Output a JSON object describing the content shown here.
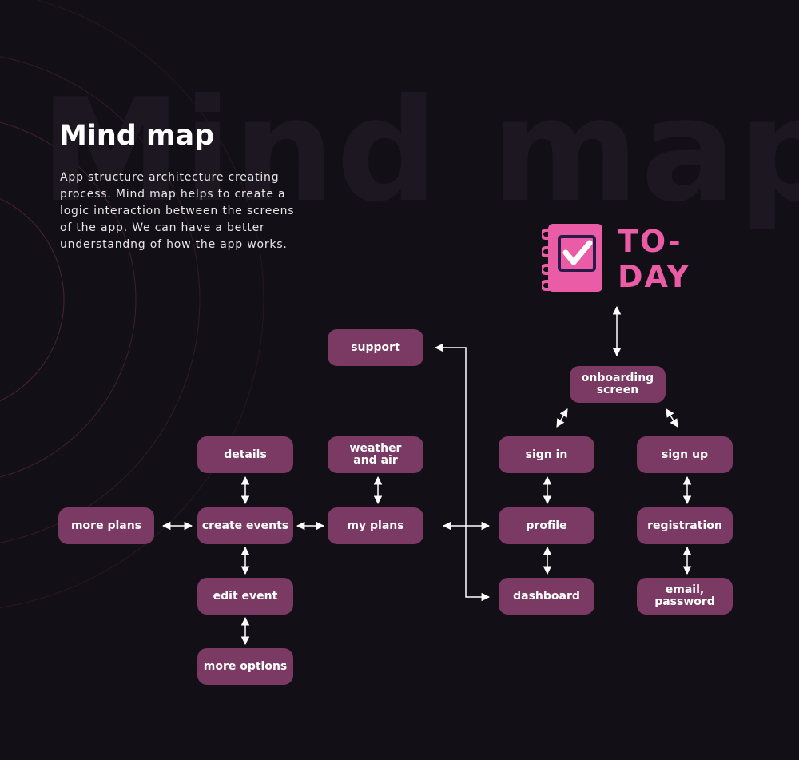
{
  "watermark": "Mind map",
  "title": "Mind map",
  "description": "App structure architecture creating process. Mind map helps to create a logic interaction between the screens of the app. We can have a better understandng of how the app works.",
  "brand": {
    "line1": "TO-",
    "line2": "DAY",
    "color": "#ea5ca5"
  },
  "colors": {
    "background": "#130f16",
    "node": "#7b3a63",
    "accent": "#ea5ca5",
    "arrow": "#ffffff"
  },
  "nodes": {
    "support": "support",
    "onboarding": "onboarding\nscreen",
    "details": "details",
    "weather": "weather\nand air",
    "sign_in": "sign in",
    "sign_up": "sign up",
    "more_plans": "more plans",
    "create_events": "create events",
    "my_plans": "my plans",
    "profile": "profile",
    "registration": "registration",
    "edit_event": "edit event",
    "dashboard": "dashboard",
    "email_password": "email,\npassword",
    "more_options": "more options"
  }
}
